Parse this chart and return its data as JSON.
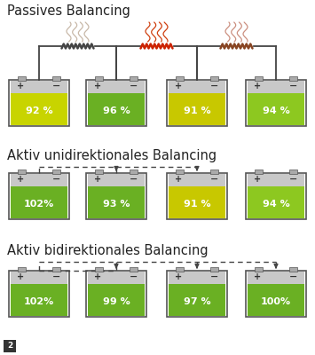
{
  "title1": "Passives Balancing",
  "title2": "Aktiv unidirektionales Balancing",
  "title3": "Aktiv bidirektionales Balancing",
  "passive_values": [
    "92 %",
    "96 %",
    "91 %",
    "94 %"
  ],
  "passive_fill_colors": [
    "#c8d400",
    "#6ab023",
    "#c8c800",
    "#8dc820"
  ],
  "unidirect_values": [
    "102%",
    "93 %",
    "91 %",
    "94 %"
  ],
  "unidirect_fill_colors": [
    "#6ab023",
    "#6ab023",
    "#c8c800",
    "#8dc820"
  ],
  "bidirect_values": [
    "102%",
    "99 %",
    "97 %",
    "100%"
  ],
  "bidirect_fill_colors": [
    "#6ab023",
    "#6ab023",
    "#6ab023",
    "#6ab023"
  ],
  "bg_color": "#ffffff",
  "wire_color": "#444444",
  "page_number": "2",
  "heat_colors_passive": [
    "#c8b8a8",
    "#d04010",
    "#cc9080"
  ],
  "resistor_colors": [
    "#444444",
    "#cc2200",
    "#884422"
  ]
}
